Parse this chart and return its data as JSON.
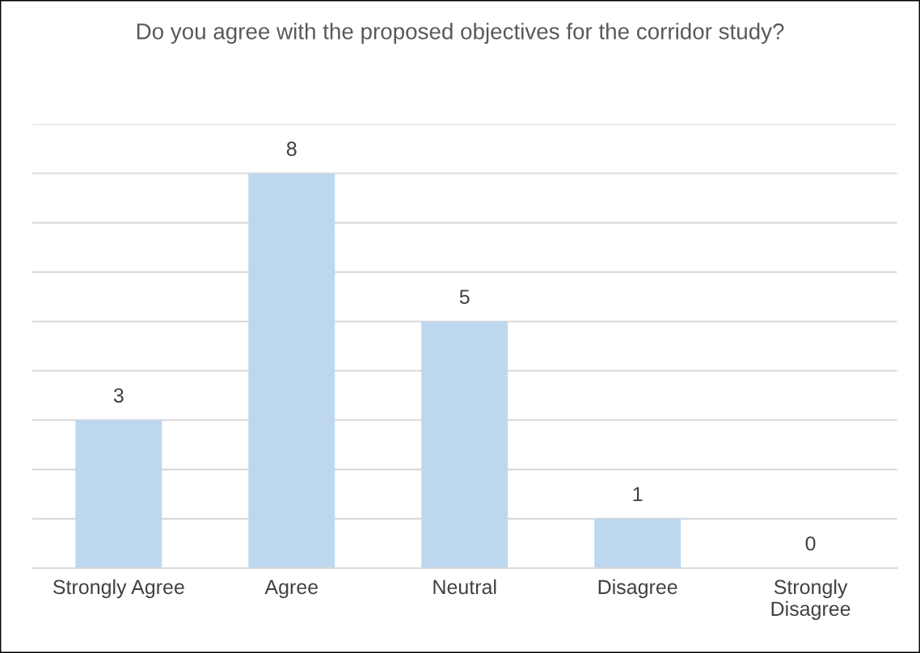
{
  "chart_data": {
    "type": "bar",
    "title": "Do you agree with the proposed objectives for the corridor study?",
    "categories": [
      "Strongly Agree",
      "Agree",
      "Neutral",
      "Disagree",
      "Strongly\nDisagree"
    ],
    "values": [
      3,
      8,
      5,
      1,
      0
    ],
    "color": "#bdd7ee",
    "ylim": [
      0,
      9
    ],
    "yticks": [
      {
        "value": 0,
        "label": null
      },
      {
        "value": 1,
        "label": null
      },
      {
        "value": 2,
        "label": null
      },
      {
        "value": 3,
        "label": null
      },
      {
        "value": 4,
        "label": null
      },
      {
        "value": 5,
        "label": null
      },
      {
        "value": 6,
        "label": null
      },
      {
        "value": 7,
        "label": null
      },
      {
        "value": 8,
        "label": null
      },
      {
        "value": 9,
        "label": null
      }
    ],
    "tick_labels": "x",
    "grid": "y",
    "data_labels": true
  }
}
